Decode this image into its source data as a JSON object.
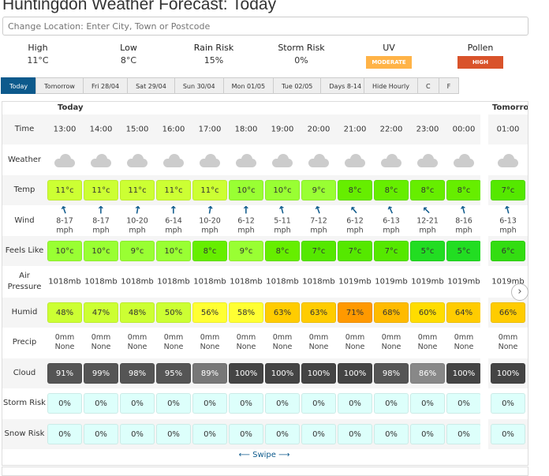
{
  "title": "Huntingdon Weather Forecast: Today",
  "location_placeholder": "Change Location: Enter City, Town or Postcode",
  "summary": [
    {
      "label": "High",
      "value": "11°C"
    },
    {
      "label": "Low",
      "value": "8°C"
    },
    {
      "label": "Rain Risk",
      "value": "15%"
    },
    {
      "label": "Storm Risk",
      "value": "0%"
    },
    {
      "label": "UV",
      "badge": "MODERATE",
      "color": "#ffb347"
    },
    {
      "label": "Pollen",
      "badge": "HIGH",
      "color": "#d9532b"
    }
  ],
  "tabs": [
    "Today",
    "Tomorrow",
    "Fri 28/04",
    "Sat 29/04",
    "Sun 30/04",
    "Mon 01/05",
    "Tue 02/05",
    "Days 8-14"
  ],
  "options": [
    "Hide Hourly",
    "C",
    "F"
  ],
  "day_labels": {
    "today": "Today",
    "tomorrow": "Tomorrow"
  },
  "row_labels": {
    "time": "Time",
    "weather": "Weather",
    "temp": "Temp",
    "wind": "Wind",
    "feels": "Feels Like",
    "pressure": "Air Pressure",
    "humid": "Humid",
    "precip": "Precip",
    "cloud": "Cloud",
    "storm": "Storm Risk",
    "snow": "Snow Risk"
  },
  "hours": [
    {
      "time": "13:00",
      "weather": "cloud",
      "temp": "11°c",
      "wind": "8-17",
      "wind_dir": -20,
      "feels": "10°c",
      "pressure": "1018mb",
      "humid": "48%",
      "precip": "0mm",
      "precip_type": "None",
      "cloud": "91%",
      "storm": "0%",
      "snow": "0%"
    },
    {
      "time": "14:00",
      "weather": "cloud",
      "temp": "11°c",
      "wind": "8-17",
      "wind_dir": 0,
      "feels": "10°c",
      "pressure": "1018mb",
      "humid": "47%",
      "precip": "0mm",
      "precip_type": "None",
      "cloud": "99%",
      "storm": "0%",
      "snow": "0%"
    },
    {
      "time": "15:00",
      "weather": "cloud",
      "temp": "11°c",
      "wind": "10-20",
      "wind_dir": 10,
      "feels": "9°c",
      "pressure": "1018mb",
      "humid": "48%",
      "precip": "0mm",
      "precip_type": "None",
      "cloud": "98%",
      "storm": "0%",
      "snow": "0%"
    },
    {
      "time": "16:00",
      "weather": "cloud",
      "temp": "11°c",
      "wind": "6-14",
      "wind_dir": 0,
      "feels": "10°c",
      "pressure": "1018mb",
      "humid": "50%",
      "precip": "0mm",
      "precip_type": "None",
      "cloud": "95%",
      "storm": "0%",
      "snow": "0%"
    },
    {
      "time": "17:00",
      "weather": "cloud",
      "temp": "11°c",
      "wind": "10-20",
      "wind_dir": 10,
      "feels": "8°c",
      "pressure": "1018mb",
      "humid": "56%",
      "precip": "0mm",
      "precip_type": "None",
      "cloud": "89%",
      "storm": "0%",
      "snow": "0%"
    },
    {
      "time": "18:00",
      "weather": "cloud",
      "temp": "10°c",
      "wind": "6-12",
      "wind_dir": 0,
      "feels": "9°c",
      "pressure": "1018mb",
      "humid": "58%",
      "precip": "0mm",
      "precip_type": "None",
      "cloud": "100%",
      "storm": "0%",
      "snow": "0%"
    },
    {
      "time": "19:00",
      "weather": "cloud",
      "temp": "10°c",
      "wind": "5-11",
      "wind_dir": -15,
      "feels": "8°c",
      "pressure": "1018mb",
      "humid": "63%",
      "precip": "0mm",
      "precip_type": "None",
      "cloud": "100%",
      "storm": "0%",
      "snow": "0%"
    },
    {
      "time": "20:00",
      "weather": "cloud",
      "temp": "9°c",
      "wind": "7-12",
      "wind_dir": -20,
      "feels": "7°c",
      "pressure": "1018mb",
      "humid": "63%",
      "precip": "0mm",
      "precip_type": "None",
      "cloud": "100%",
      "storm": "0%",
      "snow": "0%"
    },
    {
      "time": "21:00",
      "weather": "cloud",
      "temp": "8°c",
      "wind": "6-12",
      "wind_dir": -40,
      "feels": "7°c",
      "pressure": "1019mb",
      "humid": "71%",
      "precip": "0mm",
      "precip_type": "None",
      "cloud": "100%",
      "storm": "0%",
      "snow": "0%"
    },
    {
      "time": "22:00",
      "weather": "cloud",
      "temp": "8°c",
      "wind": "6-13",
      "wind_dir": -25,
      "feels": "7°c",
      "pressure": "1019mb",
      "humid": "68%",
      "precip": "0mm",
      "precip_type": "None",
      "cloud": "98%",
      "storm": "0%",
      "snow": "0%"
    },
    {
      "time": "23:00",
      "weather": "cloud",
      "temp": "8°c",
      "wind": "12-21",
      "wind_dir": -45,
      "feels": "5°c",
      "pressure": "1019mb",
      "humid": "60%",
      "precip": "0mm",
      "precip_type": "None",
      "cloud": "86%",
      "storm": "0%",
      "snow": "0%"
    },
    {
      "time": "00:00",
      "weather": "cloud",
      "temp": "8°c",
      "wind": "8-16",
      "wind_dir": -15,
      "feels": "5°c",
      "pressure": "1019mb",
      "humid": "64%",
      "precip": "0mm",
      "precip_type": "None",
      "cloud": "100%",
      "storm": "0%",
      "snow": "0%"
    },
    {
      "time": "01:00",
      "weather": "cloud",
      "temp": "7°c",
      "wind": "6-13",
      "wind_dir": -15,
      "feels": "6°c",
      "pressure": "1019mb",
      "humid": "66%",
      "precip": "0mm",
      "precip_type": "None",
      "cloud": "100%",
      "storm": "0%",
      "snow": "0%"
    }
  ],
  "wind_unit": "mph",
  "swipe_label": "Swipe",
  "colors": {
    "accent": "#0d5a8c",
    "storm_bg": "#ddfffb"
  }
}
